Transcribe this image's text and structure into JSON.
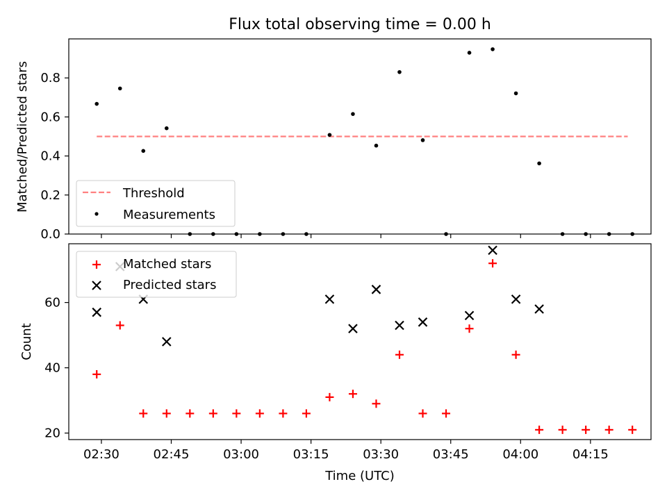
{
  "title": "Flux total observing time = 0.00 h",
  "chart_data": [
    {
      "type": "scatter",
      "panel": "top",
      "title": "Flux total observing time = 0.00 h",
      "xlabel": "",
      "ylabel": "Matched/Predicted stars",
      "xlim_minutes": [
        143,
        268
      ],
      "ylim": [
        0,
        1.0
      ],
      "yticks": [
        0.0,
        0.2,
        0.4,
        0.6,
        0.8
      ],
      "ytick_labels": [
        "0.0",
        "0.2",
        "0.4",
        "0.6",
        "0.8"
      ],
      "threshold": {
        "name": "Threshold",
        "value": 0.5,
        "x_start_minutes": 149,
        "x_end_minutes": 263,
        "color": "#ff7f7f",
        "style": "dashed"
      },
      "series": [
        {
          "name": "Measurements",
          "color": "#000000",
          "marker": "dot",
          "x_minutes": [
            149,
            154,
            159,
            164,
            169,
            174,
            179,
            184,
            189,
            194,
            199,
            204,
            209,
            214,
            219,
            224,
            229,
            234,
            239,
            244,
            249,
            254,
            259,
            264
          ],
          "values": [
            0.667,
            0.746,
            0.426,
            0.542,
            0.0,
            0.0,
            0.0,
            0.0,
            0.0,
            0.0,
            0.508,
            0.615,
            0.453,
            0.83,
            0.481,
            0.0,
            0.929,
            0.947,
            0.721,
            0.362,
            0.0,
            0.0,
            0.0,
            0.0
          ]
        }
      ],
      "legend": {
        "placement": "lower-left",
        "entries": [
          "Threshold",
          "Measurements"
        ]
      }
    },
    {
      "type": "scatter",
      "panel": "bottom",
      "xlabel": "Time (UTC)",
      "ylabel": "Count",
      "xlim_minutes": [
        143,
        268
      ],
      "ylim": [
        18,
        78
      ],
      "yticks": [
        20,
        40,
        60
      ],
      "ytick_labels": [
        "20",
        "40",
        "60"
      ],
      "xticks_minutes": [
        150,
        165,
        180,
        195,
        210,
        225,
        240,
        255
      ],
      "xtick_labels": [
        "02:30",
        "02:45",
        "03:00",
        "03:15",
        "03:30",
        "03:45",
        "04:00",
        "04:15"
      ],
      "series": [
        {
          "name": "Matched stars",
          "color": "#ff0000",
          "marker": "plus",
          "x_minutes": [
            149,
            154,
            159,
            164,
            169,
            174,
            179,
            184,
            189,
            194,
            199,
            204,
            209,
            214,
            219,
            224,
            229,
            234,
            239,
            244,
            249,
            254,
            259,
            264
          ],
          "values": [
            38,
            53,
            26,
            26,
            26,
            26,
            26,
            26,
            26,
            26,
            31,
            32,
            29,
            44,
            26,
            26,
            52,
            72,
            44,
            21,
            21,
            21,
            21,
            21
          ]
        },
        {
          "name": "Predicted stars",
          "color": "#000000",
          "marker": "x",
          "x_minutes": [
            149,
            154,
            159,
            164,
            199,
            204,
            209,
            214,
            219,
            229,
            234,
            239,
            244
          ],
          "values": [
            57,
            71,
            61,
            48,
            61,
            52,
            64,
            53,
            54,
            56,
            76,
            61,
            58
          ]
        }
      ],
      "legend": {
        "placement": "top-left",
        "entries": [
          "Matched stars",
          "Predicted stars"
        ]
      }
    }
  ]
}
